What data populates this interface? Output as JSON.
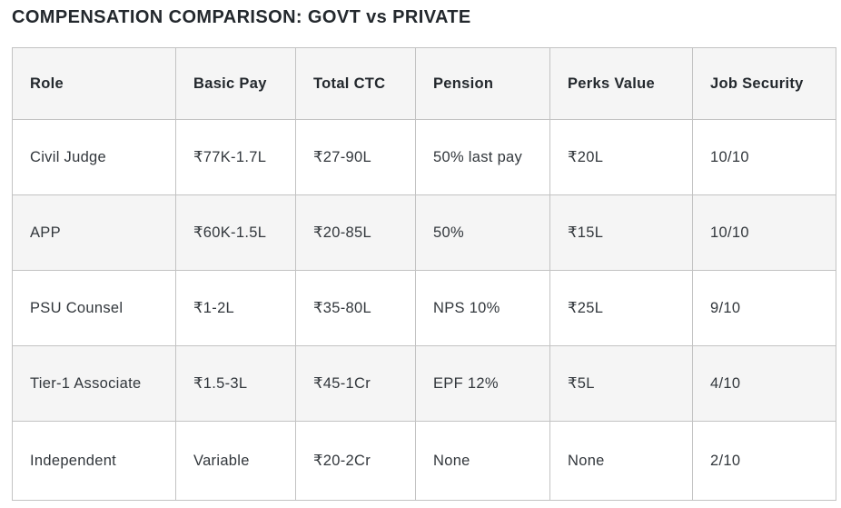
{
  "page": {
    "title": "COMPENSATION COMPARISON: GOVT vs PRIVATE"
  },
  "table": {
    "columns": [
      "Role",
      "Basic Pay",
      "Total CTC",
      "Pension",
      "Perks Value",
      "Job Security"
    ],
    "rows": [
      [
        "Civil Judge",
        "₹77K-1.7L",
        "₹27-90L",
        "50% last pay",
        "₹20L",
        "10/10"
      ],
      [
        "APP",
        "₹60K-1.5L",
        "₹20-85L",
        "50%",
        "₹15L",
        "10/10"
      ],
      [
        "PSU Counsel",
        "₹1-2L",
        "₹35-80L",
        "NPS 10%",
        "₹25L",
        "9/10"
      ],
      [
        "Tier-1 Associate",
        "₹1.5-3L",
        "₹45-1Cr",
        "EPF 12%",
        "₹5L",
        "4/10"
      ],
      [
        "Independent",
        "Variable",
        "₹20-2Cr",
        "None",
        "None",
        "2/10"
      ]
    ]
  },
  "colors": {
    "title_text": "#23282d",
    "body_text": "#32373c",
    "border": "#c3c3c3",
    "header_bg": "#f5f5f5",
    "stripe_bg": "#f5f5f5",
    "row_bg": "#ffffff"
  }
}
